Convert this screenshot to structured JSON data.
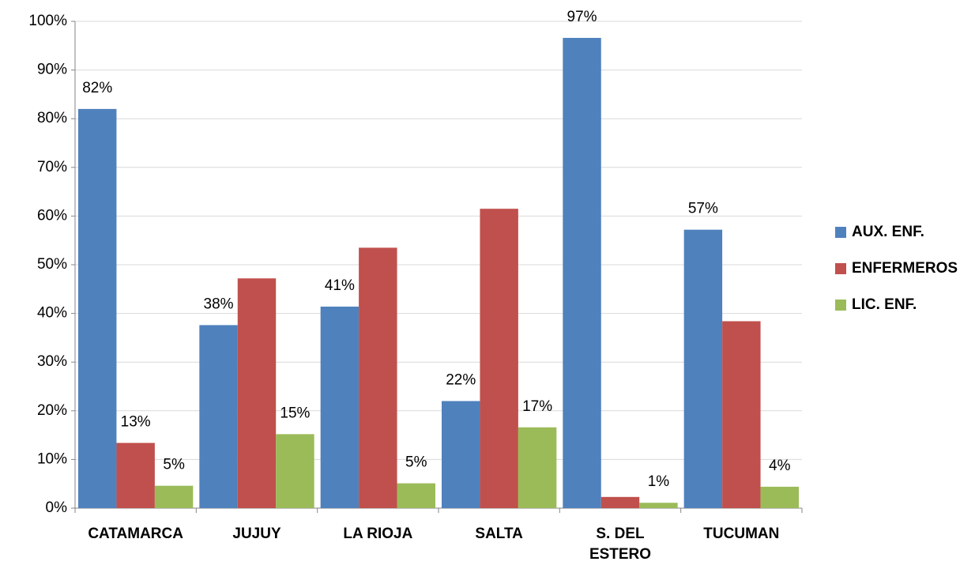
{
  "chart_data": {
    "type": "bar",
    "categories": [
      "CATAMARCA",
      "JUJUY",
      "LA RIOJA",
      "SALTA",
      "S. DEL ESTERO",
      "TUCUMAN"
    ],
    "series": [
      {
        "name": "AUX. ENF.",
        "color": "#4f81bd",
        "values": [
          82,
          37.6,
          41.4,
          22,
          96.6,
          57.2
        ],
        "value_labels": [
          "82%",
          "38%",
          "41%",
          "22%",
          "97%",
          "57%"
        ]
      },
      {
        "name": "ENFERMEROS",
        "color": "#c0504d",
        "values": [
          13.4,
          47.2,
          53.5,
          61.5,
          2.3,
          38.4
        ],
        "value_labels": [
          "13%",
          null,
          null,
          null,
          null,
          null
        ]
      },
      {
        "name": "LIC. ENF.",
        "color": "#9bbb59",
        "values": [
          4.6,
          15.2,
          5.1,
          16.6,
          1.1,
          4.4
        ],
        "value_labels": [
          "5%",
          "15%",
          "5%",
          "17%",
          "1%",
          "4%"
        ]
      }
    ],
    "ylim": [
      0,
      100
    ],
    "yticks": [
      {
        "value": 0,
        "label": "0%"
      },
      {
        "value": 10,
        "label": "10%"
      },
      {
        "value": 20,
        "label": "20%"
      },
      {
        "value": 30,
        "label": "30%"
      },
      {
        "value": 40,
        "label": "40%"
      },
      {
        "value": 50,
        "label": "50%"
      },
      {
        "value": 60,
        "label": "60%"
      },
      {
        "value": 70,
        "label": "70%"
      },
      {
        "value": 80,
        "label": "80%"
      },
      {
        "value": 90,
        "label": "90%"
      },
      {
        "value": 100,
        "label": "100%"
      }
    ],
    "grid": true,
    "legend": "right"
  }
}
